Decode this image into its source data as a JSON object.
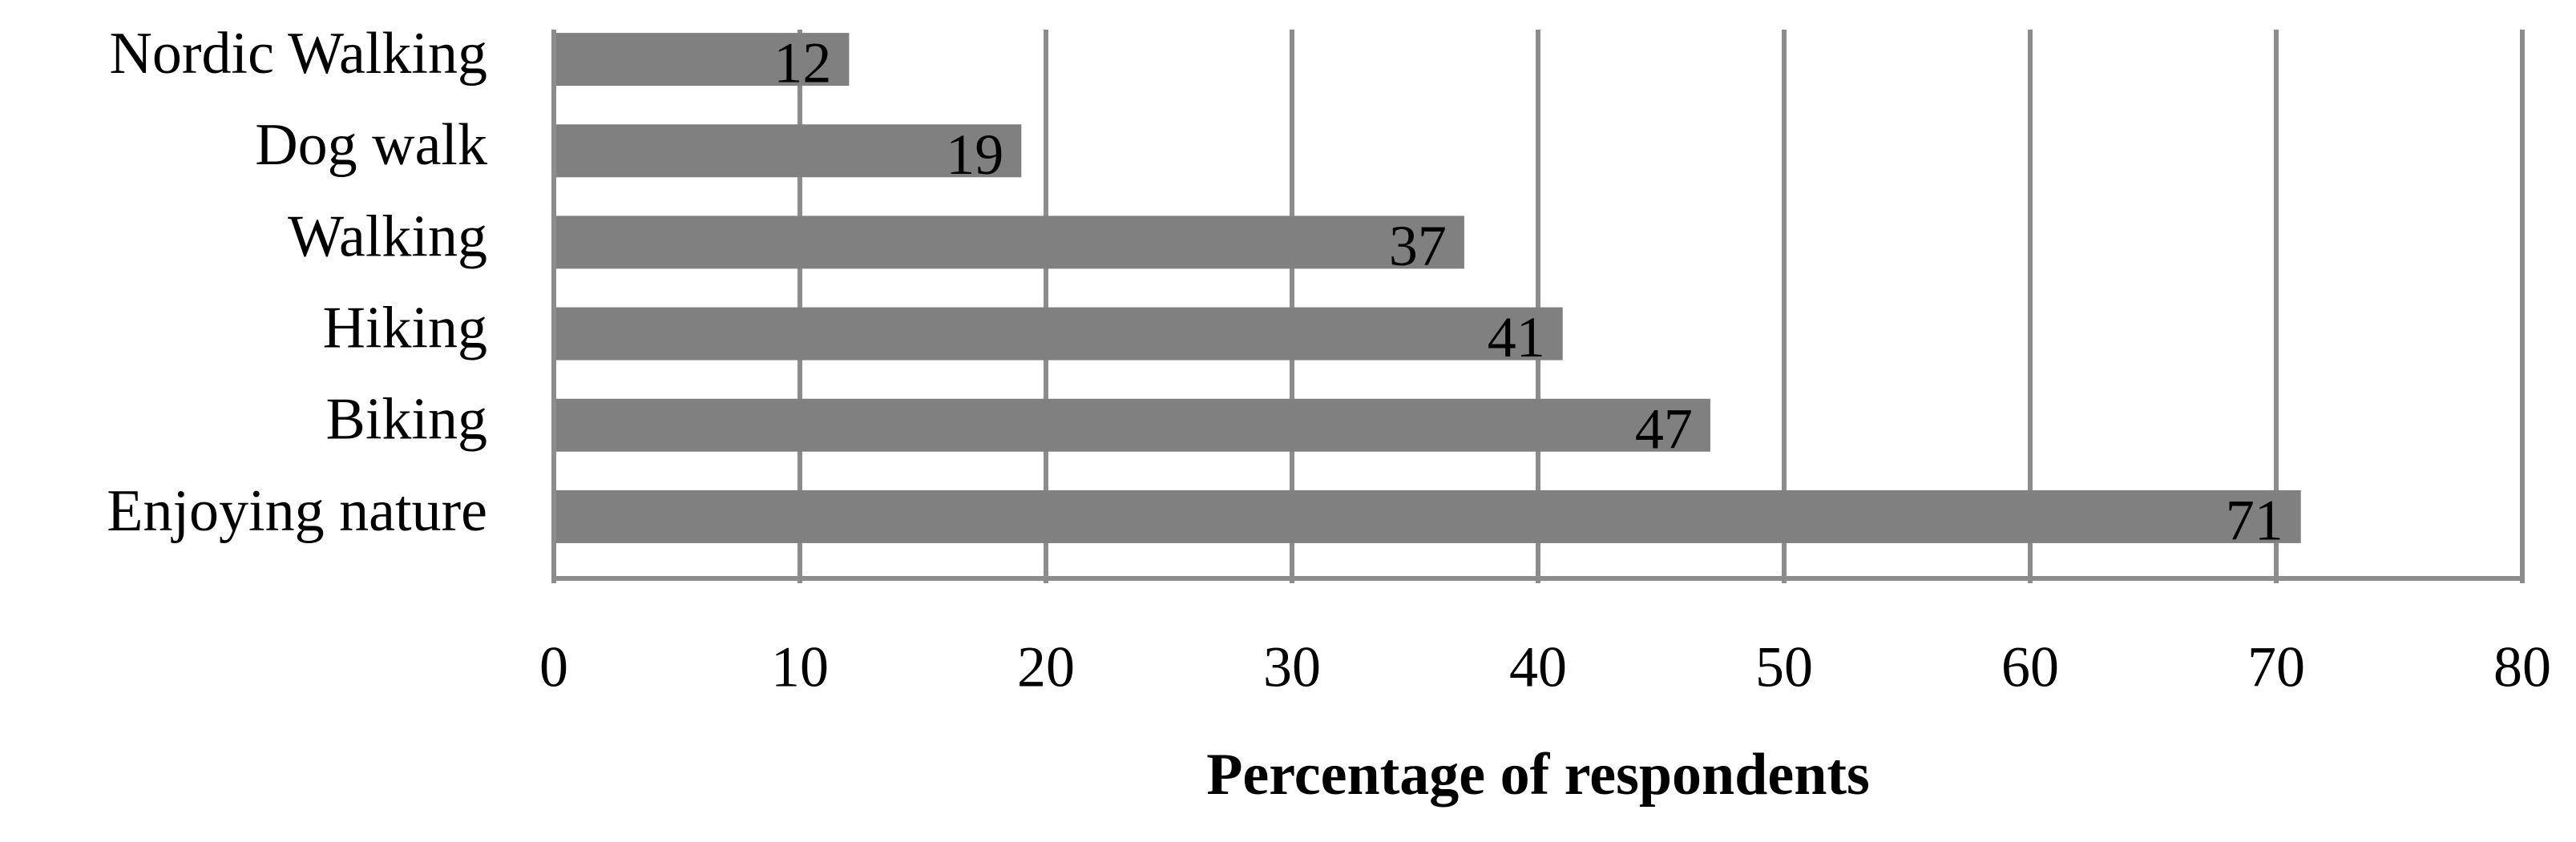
{
  "chart_data": {
    "type": "barh",
    "x_label": "Percentage of respondents",
    "categories": [
      "Nordic Walking",
      "Dog walk",
      "Walking",
      "Hiking",
      "Biking",
      "Enjoying nature"
    ],
    "values": [
      12,
      19,
      37,
      41,
      47,
      71
    ],
    "color": "#808080",
    "xlim": [
      0,
      80
    ],
    "xticks": [
      0,
      10,
      20,
      30,
      40,
      50,
      60,
      70,
      80
    ],
    "grid": true
  }
}
